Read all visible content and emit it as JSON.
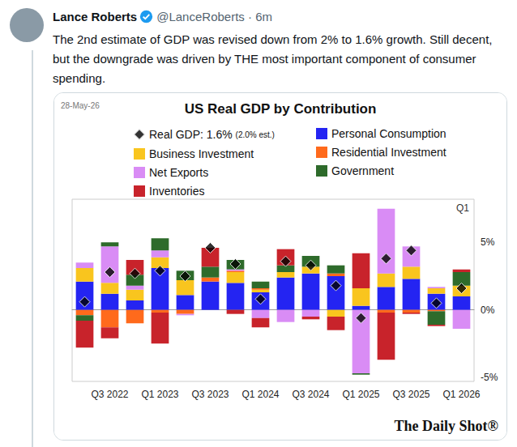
{
  "tweet": {
    "author": "Lance Roberts",
    "meta": "@LanceRoberts · 6m",
    "text": "The 2nd estimate of GDP was revised down from 2% to 1.6% growth. Still decent, but the downgrade was driven by THE most important component of consumer spending."
  },
  "chart_data": {
    "type": "bar",
    "title": "US Real GDP by Contribution",
    "date": "28-May-26",
    "corner_label": "Q1",
    "source": "The Daily Shot®",
    "categories": [
      null,
      "Q3 2022",
      null,
      "Q1 2023",
      null,
      "Q3 2023",
      null,
      "Q1 2024",
      null,
      "Q3 2024",
      null,
      "Q1 2025",
      null,
      "Q3 2025",
      null,
      "Q1 2026"
    ],
    "stacked": true,
    "grid": false,
    "legend": "top",
    "ylim": [
      -5.3,
      8.2
    ],
    "yticks": [
      {
        "value": -5,
        "label": "-5%"
      },
      {
        "value": 0,
        "label": "0%"
      },
      {
        "value": 5,
        "label": "5%"
      }
    ],
    "series": [
      {
        "name": "Real GDP: 1.6%",
        "note": "(2.0% est.)",
        "type": "scatter",
        "marker": "diamond",
        "color": "#000000",
        "values": [
          0.6,
          2.8,
          2.7,
          2.9,
          2.5,
          4.6,
          3.4,
          0.8,
          3.6,
          3.3,
          1.8,
          -0.6,
          3.8,
          4.4,
          0.5,
          1.6
        ]
      },
      {
        "name": "Personal Consumption",
        "type": "bar",
        "color": "#2424f2",
        "values": [
          2.1,
          1.2,
          0.7,
          3.1,
          1.1,
          2.1,
          2.0,
          1.3,
          2.4,
          2.7,
          2.5,
          0.3,
          1.7,
          2.3,
          1.2,
          1.0
        ]
      },
      {
        "name": "Business Investment",
        "type": "bar",
        "color": "#f9c51e",
        "values": [
          1.0,
          0.8,
          0.8,
          0.8,
          1.1,
          0.0,
          0.8,
          0.2,
          0.4,
          0.5,
          -0.5,
          1.3,
          1.0,
          0.9,
          0.4,
          0.8
        ]
      },
      {
        "name": "Residential Investment",
        "type": "bar",
        "color": "#ff6a1c",
        "values": [
          -0.4,
          -1.3,
          -1.0,
          -0.2,
          -0.3,
          0.3,
          0.1,
          0.1,
          0.0,
          0.0,
          0.2,
          0.0,
          -0.2,
          -0.2,
          -0.1,
          0.0
        ]
      },
      {
        "name": "Net Exports",
        "type": "bar",
        "color": "#d98cf5",
        "values": [
          0.4,
          2.7,
          0.3,
          0.5,
          -0.1,
          0.0,
          0.1,
          -0.6,
          -0.9,
          -0.5,
          0.0,
          -4.7,
          4.8,
          1.5,
          0.1,
          -1.4
        ]
      },
      {
        "name": "Government",
        "type": "bar",
        "color": "#2e6b2b",
        "values": [
          -0.4,
          0.3,
          0.8,
          0.9,
          0.7,
          0.8,
          0.7,
          0.5,
          0.5,
          0.8,
          0.6,
          -0.1,
          0.0,
          0.0,
          -1.0,
          1.0
        ]
      },
      {
        "name": "Inventories",
        "type": "bar",
        "color": "#c8232b",
        "values": [
          -2.0,
          -0.8,
          1.1,
          -2.3,
          0.0,
          1.4,
          -0.3,
          -0.7,
          1.2,
          -0.2,
          -1.0,
          2.6,
          -3.5,
          -0.1,
          -0.1,
          0.2
        ]
      }
    ]
  }
}
